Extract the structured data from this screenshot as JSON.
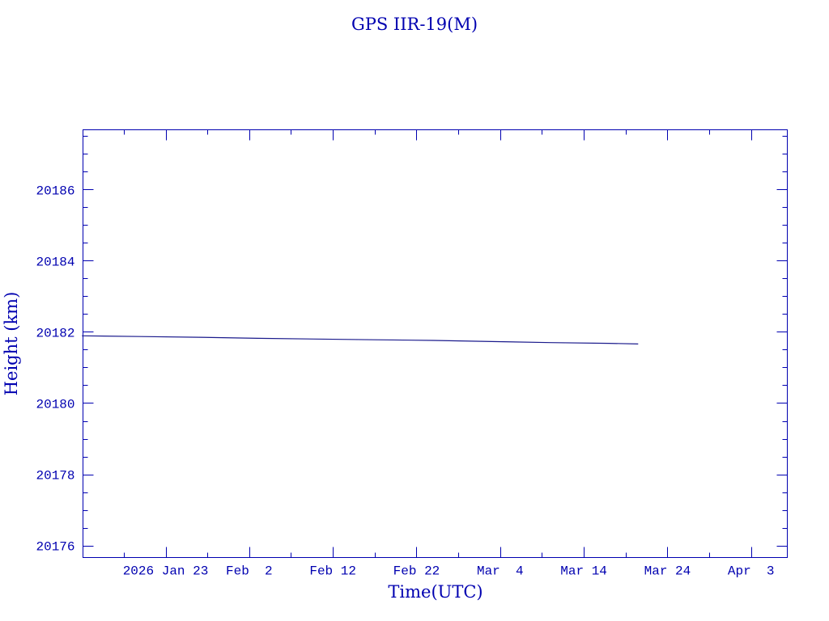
{
  "chart_data": {
    "type": "line",
    "title": "GPS IIR-19(M)",
    "xlabel": "Time(UTC)",
    "ylabel": "Height (km)",
    "xlim": [
      "2026-01-13T03:00:00Z",
      "2026-04-07T08:00:00Z"
    ],
    "ylim": [
      20175.66,
      20187.68
    ],
    "grid": false,
    "colors": {
      "axes": "#0000b0",
      "line": "#1a1a8c",
      "text": "#0000b0"
    },
    "x_ticks": [
      {
        "date": "2026-01-23",
        "label": "2026 Jan 23"
      },
      {
        "date": "2026-02-02",
        "label": "Feb  2"
      },
      {
        "date": "2026-02-12",
        "label": "Feb 12"
      },
      {
        "date": "2026-02-22",
        "label": "Feb 22"
      },
      {
        "date": "2026-03-04",
        "label": "Mar  4"
      },
      {
        "date": "2026-03-14",
        "label": "Mar 14"
      },
      {
        "date": "2026-03-24",
        "label": "Mar 24"
      },
      {
        "date": "2026-04-03",
        "label": "Apr  3"
      }
    ],
    "y_ticks": [
      20176,
      20178,
      20180,
      20182,
      20184,
      20186
    ],
    "series": [
      {
        "x": [
          "2026-01-13",
          "2026-01-20",
          "2026-01-27",
          "2026-02-03",
          "2026-02-10",
          "2026-02-17",
          "2026-02-24",
          "2026-03-03",
          "2026-03-10",
          "2026-03-17",
          "2026-03-20T12:00:00Z"
        ],
        "y": [
          20181.89,
          20181.87,
          20181.85,
          20181.82,
          20181.8,
          20181.78,
          20181.76,
          20181.73,
          20181.7,
          20181.68,
          20181.66
        ]
      }
    ]
  }
}
